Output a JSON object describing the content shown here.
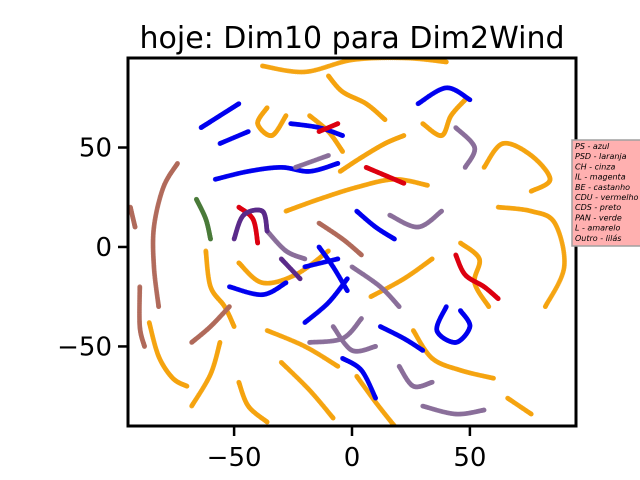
{
  "chart_data": {
    "type": "scatter",
    "title": "hoje: Dim10 para Dim2Wind",
    "xlabel": "",
    "ylabel": "",
    "xlim": [
      -95,
      95
    ],
    "ylim": [
      -90,
      95
    ],
    "xticks": [
      -50,
      0,
      50
    ],
    "yticks": [
      -50,
      0,
      50
    ],
    "xtick_labels": [
      "−50",
      "0",
      "50"
    ],
    "ytick_labels": [
      "−50",
      "0",
      "50"
    ],
    "grid": false,
    "legend_position": "right",
    "legend": [
      {
        "label": "PS - azul",
        "color": "#0000ff"
      },
      {
        "label": "PSD - laranja",
        "color": "#ffa500"
      },
      {
        "label": "CH - cinza",
        "color": "#808080"
      },
      {
        "label": "IL - magenta",
        "color": "#ff00ff"
      },
      {
        "label": "BE - castanho",
        "color": "#a52a2a"
      },
      {
        "label": "CDU - vermelho",
        "color": "#ff0000"
      },
      {
        "label": "CDS - preto",
        "color": "#000000"
      },
      {
        "label": "PAN - verde",
        "color": "#008000"
      },
      {
        "label": "L - amarelo",
        "color": "#ffff00"
      },
      {
        "label": "Outro - lilás",
        "color": "#c8a2c8"
      }
    ],
    "series": [
      {
        "color": "#f5a30f",
        "curves": [
          [
            [
              -38,
              91
            ],
            [
              -20,
              88
            ],
            [
              0,
              94
            ],
            [
              22,
              95
            ],
            [
              40,
              93
            ]
          ],
          [
            [
              -36,
              70
            ],
            [
              -40,
              62
            ],
            [
              -34,
              56
            ],
            [
              -28,
              66
            ]
          ],
          [
            [
              -28,
              18
            ],
            [
              -14,
              24
            ],
            [
              2,
              30
            ],
            [
              18,
              34
            ],
            [
              32,
              31
            ]
          ],
          [
            [
              -5,
              38
            ],
            [
              4,
              45
            ],
            [
              14,
              52
            ],
            [
              22,
              56
            ]
          ],
          [
            [
              46,
              2
            ],
            [
              54,
              -6
            ],
            [
              52,
              -18
            ],
            [
              58,
              -30
            ]
          ],
          [
            [
              -62,
              -2
            ],
            [
              -60,
              -20
            ],
            [
              -54,
              -30
            ],
            [
              -50,
              -40
            ]
          ],
          [
            [
              -86,
              -38
            ],
            [
              -82,
              -55
            ],
            [
              -76,
              -66
            ],
            [
              -70,
              -70
            ]
          ],
          [
            [
              -36,
              -42
            ],
            [
              -20,
              -50
            ],
            [
              -6,
              -60
            ]
          ],
          [
            [
              2,
              -65
            ],
            [
              10,
              -78
            ],
            [
              18,
              -90
            ]
          ],
          [
            [
              26,
              -42
            ],
            [
              34,
              -56
            ],
            [
              46,
              -62
            ],
            [
              60,
              -66
            ]
          ],
          [
            [
              -48,
              -68
            ],
            [
              -44,
              -80
            ],
            [
              -36,
              -88
            ]
          ],
          [
            [
              8,
              -25
            ],
            [
              22,
              -16
            ],
            [
              34,
              -6
            ]
          ],
          [
            [
              -10,
              -2
            ],
            [
              -24,
              -14
            ],
            [
              -38,
              -18
            ],
            [
              -48,
              -8
            ]
          ],
          [
            [
              56,
              40
            ],
            [
              64,
              52
            ],
            [
              76,
              46
            ],
            [
              84,
              34
            ],
            [
              76,
              28
            ]
          ],
          [
            [
              62,
              20
            ],
            [
              76,
              18
            ],
            [
              86,
              12
            ],
            [
              90,
              -10
            ],
            [
              82,
              -30
            ]
          ],
          [
            [
              -30,
              -58
            ],
            [
              -18,
              -72
            ],
            [
              -8,
              -86
            ]
          ],
          [
            [
              -10,
              86
            ],
            [
              -4,
              78
            ],
            [
              6,
              72
            ],
            [
              14,
              64
            ]
          ],
          [
            [
              30,
              62
            ],
            [
              38,
              56
            ],
            [
              42,
              66
            ],
            [
              48,
              74
            ]
          ],
          [
            [
              -68,
              -80
            ],
            [
              -60,
              -64
            ],
            [
              -56,
              -48
            ]
          ],
          [
            [
              -18,
              66
            ],
            [
              -10,
              58
            ],
            [
              -4,
              48
            ]
          ],
          [
            [
              66,
              -76
            ],
            [
              76,
              -84
            ]
          ]
        ]
      },
      {
        "color": "#0000ee",
        "curves": [
          [
            [
              -64,
              60
            ],
            [
              -56,
              66
            ],
            [
              -48,
              72
            ]
          ],
          [
            [
              -56,
              52
            ],
            [
              -44,
              58
            ]
          ],
          [
            [
              -26,
              62
            ],
            [
              -14,
              60
            ],
            [
              -4,
              56
            ]
          ],
          [
            [
              -58,
              34
            ],
            [
              -44,
              38
            ],
            [
              -30,
              40
            ],
            [
              -18,
              38
            ],
            [
              -6,
              42
            ]
          ],
          [
            [
              -52,
              -20
            ],
            [
              -38,
              -24
            ],
            [
              -28,
              -18
            ]
          ],
          [
            [
              -20,
              -38
            ],
            [
              -10,
              -28
            ],
            [
              -2,
              -16
            ]
          ],
          [
            [
              2,
              18
            ],
            [
              10,
              10
            ],
            [
              18,
              4
            ]
          ],
          [
            [
              -14,
              0
            ],
            [
              -8,
              -10
            ],
            [
              -2,
              -22
            ]
          ],
          [
            [
              40,
              -30
            ],
            [
              36,
              -42
            ],
            [
              44,
              -48
            ],
            [
              50,
              -40
            ],
            [
              46,
              -32
            ]
          ],
          [
            [
              12,
              -40
            ],
            [
              22,
              -46
            ],
            [
              30,
              -52
            ]
          ],
          [
            [
              -4,
              -56
            ],
            [
              4,
              -62
            ],
            [
              10,
              -76
            ]
          ],
          [
            [
              28,
              72
            ],
            [
              40,
              80
            ],
            [
              50,
              74
            ]
          ],
          [
            [
              -20,
              -10
            ],
            [
              -6,
              -6
            ]
          ]
        ]
      },
      {
        "color": "#8a6f9a",
        "curves": [
          [
            [
              -8,
              -40
            ],
            [
              0,
              -52
            ],
            [
              10,
              -50
            ]
          ],
          [
            [
              20,
              -60
            ],
            [
              26,
              -70
            ],
            [
              34,
              -68
            ]
          ],
          [
            [
              -24,
              40
            ],
            [
              -10,
              46
            ]
          ],
          [
            [
              0,
              -10
            ],
            [
              12,
              -20
            ],
            [
              20,
              -30
            ]
          ],
          [
            [
              30,
              -80
            ],
            [
              44,
              -84
            ],
            [
              56,
              -82
            ]
          ],
          [
            [
              16,
              16
            ],
            [
              28,
              10
            ],
            [
              38,
              18
            ]
          ],
          [
            [
              -18,
              -48
            ],
            [
              -4,
              -46
            ],
            [
              4,
              -36
            ]
          ],
          [
            [
              -36,
              8
            ],
            [
              -28,
              -2
            ],
            [
              -20,
              -6
            ]
          ],
          [
            [
              44,
              60
            ],
            [
              52,
              50
            ],
            [
              48,
              40
            ]
          ]
        ]
      },
      {
        "color": "#b06a5a",
        "curves": [
          [
            [
              -74,
              42
            ],
            [
              -80,
              30
            ],
            [
              -84,
              10
            ],
            [
              -84,
              -10
            ],
            [
              -82,
              -30
            ]
          ],
          [
            [
              -90,
              -20
            ],
            [
              -90,
              -40
            ],
            [
              -88,
              -50
            ]
          ],
          [
            [
              -94,
              20
            ],
            [
              -92,
              10
            ]
          ],
          [
            [
              -68,
              -48
            ],
            [
              -60,
              -40
            ],
            [
              -52,
              -30
            ]
          ],
          [
            [
              -14,
              12
            ],
            [
              -4,
              4
            ],
            [
              4,
              -4
            ]
          ]
        ]
      },
      {
        "color": "#dd0010",
        "curves": [
          [
            [
              44,
              -4
            ],
            [
              48,
              -14
            ],
            [
              56,
              -20
            ],
            [
              62,
              -26
            ]
          ],
          [
            [
              6,
              40
            ],
            [
              14,
              36
            ],
            [
              22,
              32
            ]
          ],
          [
            [
              -48,
              20
            ],
            [
              -42,
              14
            ],
            [
              -40,
              2
            ]
          ],
          [
            [
              -14,
              58
            ],
            [
              -6,
              62
            ]
          ]
        ]
      },
      {
        "color": "#5a2a8a",
        "curves": [
          [
            [
              -50,
              4
            ],
            [
              -46,
              16
            ],
            [
              -38,
              18
            ],
            [
              -36,
              8
            ]
          ],
          [
            [
              -30,
              -6
            ],
            [
              -22,
              -16
            ]
          ]
        ]
      },
      {
        "color": "#4a7a3a",
        "curves": [
          [
            [
              -66,
              24
            ],
            [
              -62,
              14
            ],
            [
              -60,
              4
            ]
          ]
        ]
      }
    ]
  }
}
